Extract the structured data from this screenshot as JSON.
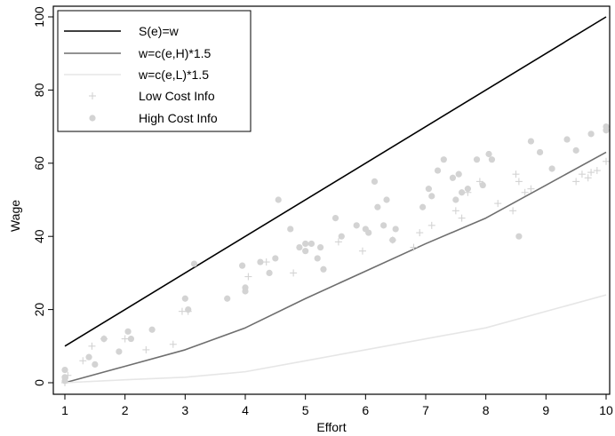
{
  "chart_data": {
    "type": "line",
    "xlabel": "Effort",
    "ylabel": "Wage",
    "xlim": [
      1,
      10
    ],
    "ylim": [
      0,
      100
    ],
    "x_ticks": [
      1,
      2,
      3,
      4,
      5,
      6,
      7,
      8,
      9,
      10
    ],
    "y_ticks": [
      0,
      20,
      40,
      60,
      80,
      100
    ],
    "legend_position": "top-left",
    "grid": false,
    "series": [
      {
        "name": "S(e)=w",
        "type": "line",
        "color": "#000000",
        "x": [
          1,
          10
        ],
        "y": [
          10,
          100
        ]
      },
      {
        "name": "w=c(e,H)*1.5",
        "type": "line",
        "color": "#6e6e6e",
        "x": [
          1,
          2,
          3,
          4,
          5,
          6,
          7,
          8,
          9,
          10
        ],
        "y": [
          0,
          4.5,
          9,
          15,
          23,
          30.5,
          38,
          45,
          54,
          63
        ]
      },
      {
        "name": "w=c(e,L)*1.5",
        "type": "line",
        "color": "#e6e6e6",
        "x": [
          1,
          2,
          3,
          4,
          5,
          6,
          7,
          8,
          9,
          10
        ],
        "y": [
          0,
          0.8,
          1.5,
          3,
          6,
          9,
          12,
          15,
          19.5,
          24
        ]
      },
      {
        "name": "Low Cost Info",
        "type": "scatter",
        "marker": "plus",
        "color": "#d3d3d3",
        "x": [
          1.0,
          1.05,
          1.3,
          1.45,
          1.65,
          2.0,
          2.35,
          2.8,
          2.95,
          3.05,
          4.05,
          4.35,
          4.8,
          5.55,
          5.95,
          6.45,
          6.8,
          6.9,
          7.1,
          7.5,
          7.6,
          7.7,
          7.9,
          8.2,
          8.45,
          8.5,
          8.55,
          8.65,
          8.75,
          9.5,
          9.6,
          9.7,
          9.75,
          9.85,
          10.0
        ],
        "y": [
          0,
          2,
          6,
          10,
          12,
          12,
          9,
          10.5,
          19.5,
          19.5,
          29,
          33,
          30,
          38.5,
          36,
          39,
          37,
          41,
          43,
          47,
          45,
          52,
          55,
          49,
          47,
          57,
          55,
          52,
          53,
          55,
          57,
          56,
          57.5,
          58,
          60.5
        ]
      },
      {
        "name": "High Cost Info",
        "type": "scatter",
        "marker": "circle",
        "color": "#d3d3d3",
        "x": [
          1.0,
          1.0,
          1.0,
          1.4,
          1.5,
          1.65,
          1.9,
          2.05,
          2.1,
          2.45,
          3.0,
          3.05,
          3.15,
          3.7,
          3.95,
          4.0,
          4.0,
          4.25,
          4.4,
          4.5,
          4.55,
          4.75,
          4.9,
          5.0,
          5.0,
          5.1,
          5.2,
          5.25,
          5.3,
          5.5,
          5.6,
          5.85,
          6.0,
          6.05,
          6.15,
          6.2,
          6.3,
          6.35,
          6.45,
          6.5,
          6.95,
          7.05,
          7.1,
          7.2,
          7.3,
          7.45,
          7.5,
          7.55,
          7.6,
          7.7,
          7.85,
          7.95,
          8.05,
          8.1,
          8.55,
          8.75,
          8.9,
          9.1,
          9.35,
          9.5,
          9.75,
          10.0,
          10.0
        ],
        "y": [
          3.5,
          1.5,
          0.5,
          7,
          5,
          12,
          8.5,
          14,
          12,
          14.5,
          23,
          20,
          32.5,
          23,
          32,
          26,
          25,
          33,
          30,
          34,
          50,
          42,
          37,
          38,
          36,
          38,
          34,
          37,
          31,
          45,
          40,
          43,
          42,
          41,
          55,
          48,
          43,
          50,
          39,
          42,
          48,
          53,
          51,
          58,
          61,
          56,
          50,
          57,
          52,
          53,
          61,
          54,
          62.5,
          61,
          40,
          66,
          63,
          58.5,
          66.5,
          63.5,
          68,
          70,
          69
        ]
      }
    ]
  }
}
